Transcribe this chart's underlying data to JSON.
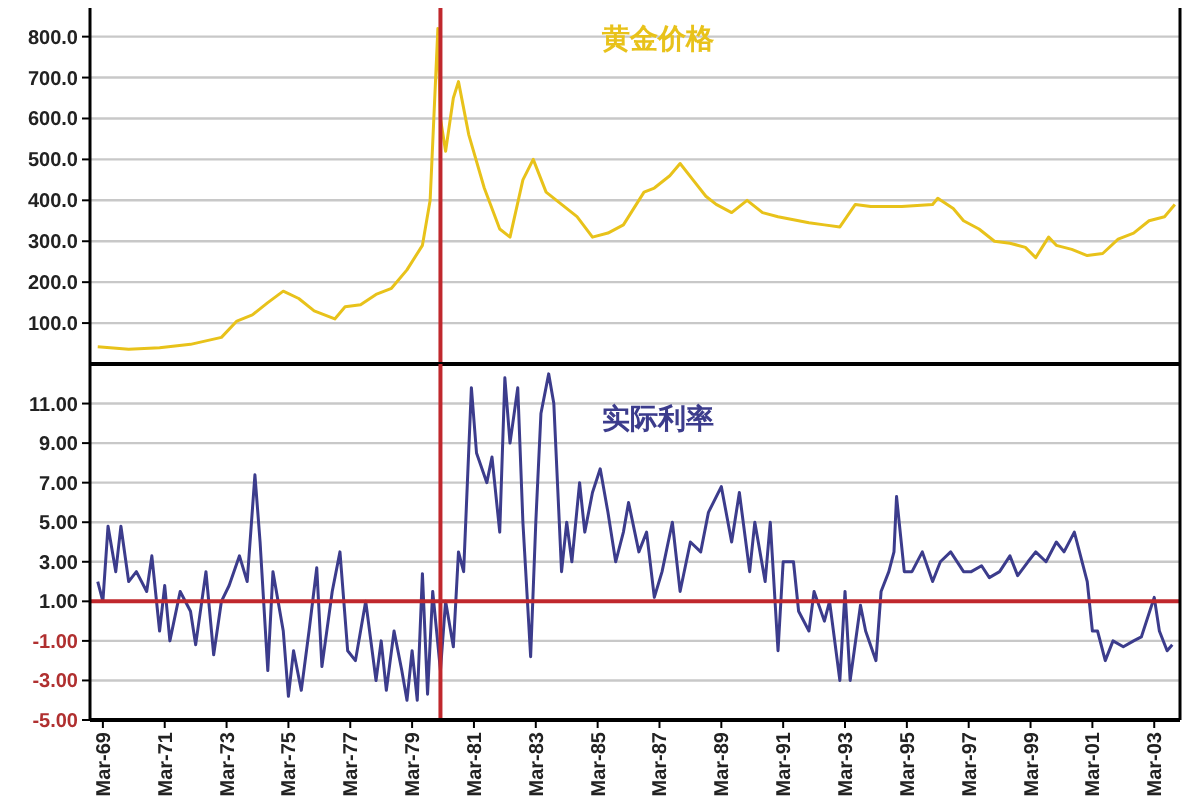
{
  "chart_data": [
    {
      "type": "line",
      "tick_labels": "y",
      "grid": "y",
      "xlim": [
        "1968-10",
        "2004-01"
      ],
      "ylim": [
        0,
        870
      ],
      "yticks": [
        {
          "value": 100,
          "label": "100.0"
        },
        {
          "value": 200,
          "label": "200.0"
        },
        {
          "value": 300,
          "label": "300.0"
        },
        {
          "value": 400,
          "label": "400.0"
        },
        {
          "value": 500,
          "label": "500.0"
        },
        {
          "value": 600,
          "label": "600.0"
        },
        {
          "value": 700,
          "label": "700.0"
        },
        {
          "value": 800,
          "label": "800.0"
        }
      ],
      "ref_lines": [
        {
          "axis": "x",
          "value": "1980-02",
          "color": "#c0282d"
        }
      ],
      "series": [
        {
          "name": "黄金价格",
          "color": "#e8c21a",
          "x": [
            "1969-01",
            "1970-01",
            "1971-01",
            "1972-01",
            "1973-01",
            "1973-07",
            "1974-01",
            "1974-07",
            "1975-01",
            "1975-07",
            "1976-01",
            "1976-09",
            "1977-01",
            "1977-07",
            "1978-01",
            "1978-07",
            "1979-01",
            "1979-07",
            "1979-10",
            "1980-01",
            "1980-02",
            "1980-04",
            "1980-07",
            "1980-09",
            "1981-01",
            "1981-07",
            "1982-01",
            "1982-05",
            "1982-10",
            "1983-02",
            "1983-07",
            "1984-01",
            "1984-07",
            "1985-01",
            "1985-07",
            "1986-01",
            "1986-09",
            "1987-01",
            "1987-07",
            "1987-11",
            "1988-04",
            "1988-09",
            "1989-01",
            "1989-07",
            "1990-01",
            "1990-07",
            "1991-01",
            "1992-01",
            "1992-07",
            "1993-01",
            "1993-07",
            "1994-01",
            "1995-01",
            "1996-01",
            "1996-03",
            "1996-09",
            "1997-01",
            "1997-07",
            "1998-01",
            "1998-07",
            "1999-01",
            "1999-05",
            "1999-10",
            "2000-01",
            "2000-07",
            "2001-01",
            "2001-07",
            "2002-01",
            "2002-07",
            "2003-01",
            "2003-07",
            "2003-11"
          ],
          "values": [
            42,
            36,
            40,
            48,
            65,
            105,
            120,
            150,
            178,
            160,
            130,
            110,
            140,
            145,
            170,
            185,
            230,
            290,
            400,
            820,
            600,
            520,
            650,
            690,
            560,
            430,
            330,
            310,
            450,
            500,
            420,
            390,
            360,
            310,
            320,
            340,
            420,
            430,
            460,
            490,
            450,
            410,
            390,
            370,
            400,
            370,
            360,
            345,
            340,
            335,
            390,
            385,
            385,
            390,
            405,
            380,
            350,
            330,
            300,
            295,
            285,
            260,
            310,
            290,
            280,
            265,
            270,
            305,
            320,
            350,
            360,
            390
          ]
        }
      ]
    },
    {
      "type": "line",
      "grid": "y",
      "xlim": [
        "1968-10",
        "2004-01"
      ],
      "ylim": [
        -5,
        13
      ],
      "xticks": [
        {
          "value": "1969-03",
          "label": "Mar-69"
        },
        {
          "value": "1971-03",
          "label": "Mar-71"
        },
        {
          "value": "1973-03",
          "label": "Mar-73"
        },
        {
          "value": "1975-03",
          "label": "Mar-75"
        },
        {
          "value": "1977-03",
          "label": "Mar-77"
        },
        {
          "value": "1979-03",
          "label": "Mar-79"
        },
        {
          "value": "1981-03",
          "label": "Mar-81"
        },
        {
          "value": "1983-03",
          "label": "Mar-83"
        },
        {
          "value": "1985-03",
          "label": "Mar-85"
        },
        {
          "value": "1987-03",
          "label": "Mar-87"
        },
        {
          "value": "1989-03",
          "label": "Mar-89"
        },
        {
          "value": "1991-03",
          "label": "Mar-91"
        },
        {
          "value": "1993-03",
          "label": "Mar-93"
        },
        {
          "value": "1995-03",
          "label": "Mar-95"
        },
        {
          "value": "1997-03",
          "label": "Mar-97"
        },
        {
          "value": "1999-03",
          "label": "Mar-99"
        },
        {
          "value": "2001-03",
          "label": "Mar-01"
        },
        {
          "value": "2003-03",
          "label": "Mar-03"
        }
      ],
      "yticks": [
        {
          "value": -5,
          "label": "-5.00"
        },
        {
          "value": -3,
          "label": "-3.00"
        },
        {
          "value": -1,
          "label": "-1.00"
        },
        {
          "value": 1,
          "label": "1.00"
        },
        {
          "value": 3,
          "label": "3.00"
        },
        {
          "value": 5,
          "label": "5.00"
        },
        {
          "value": 7,
          "label": "7.00"
        },
        {
          "value": 9,
          "label": "9.00"
        },
        {
          "value": 11,
          "label": "11.00"
        }
      ],
      "ref_lines": [
        {
          "axis": "x",
          "value": "1980-02",
          "color": "#c0282d"
        },
        {
          "axis": "y",
          "value": 1,
          "color": "#c0282d"
        }
      ],
      "series": [
        {
          "name": "实际利率",
          "color": "#3c3c8c",
          "x": [
            "1969-01",
            "1969-03",
            "1969-05",
            "1969-08",
            "1969-10",
            "1970-01",
            "1970-04",
            "1970-08",
            "1970-10",
            "1971-01",
            "1971-03",
            "1971-05",
            "1971-09",
            "1972-01",
            "1972-03",
            "1972-07",
            "1972-10",
            "1973-01",
            "1973-04",
            "1973-08",
            "1973-11",
            "1974-02",
            "1974-04",
            "1974-07",
            "1974-09",
            "1975-01",
            "1975-03",
            "1975-05",
            "1975-08",
            "1975-11",
            "1976-02",
            "1976-04",
            "1976-08",
            "1976-11",
            "1977-02",
            "1977-05",
            "1977-09",
            "1978-01",
            "1978-03",
            "1978-05",
            "1978-08",
            "1978-11",
            "1979-01",
            "1979-03",
            "1979-05",
            "1979-07",
            "1979-09",
            "1979-11",
            "1980-02",
            "1980-04",
            "1980-07",
            "1980-09",
            "1980-11",
            "1981-02",
            "1981-04",
            "1981-08",
            "1981-10",
            "1982-01",
            "1982-03",
            "1982-05",
            "1982-08",
            "1982-10",
            "1983-01",
            "1983-03",
            "1983-05",
            "1983-08",
            "1983-10",
            "1984-01",
            "1984-03",
            "1984-05",
            "1984-08",
            "1984-10",
            "1985-01",
            "1985-04",
            "1985-07",
            "1985-10",
            "1986-01",
            "1986-03",
            "1986-07",
            "1986-10",
            "1987-01",
            "1987-04",
            "1987-08",
            "1987-11",
            "1988-03",
            "1988-07",
            "1988-10",
            "1989-03",
            "1989-07",
            "1989-10",
            "1990-02",
            "1990-04",
            "1990-08",
            "1990-10",
            "1991-01",
            "1991-03",
            "1991-07",
            "1991-09",
            "1992-01",
            "1992-03",
            "1992-07",
            "1992-09",
            "1993-01",
            "1993-03",
            "1993-05",
            "1993-09",
            "1993-11",
            "1994-03",
            "1994-05",
            "1994-08",
            "1994-10",
            "1994-11",
            "1995-02",
            "1995-05",
            "1995-09",
            "1996-01",
            "1996-04",
            "1996-08",
            "1997-01",
            "1997-04",
            "1997-08",
            "1997-11",
            "1998-03",
            "1998-07",
            "1998-10",
            "1999-02",
            "1999-05",
            "1999-09",
            "2000-01",
            "2000-04",
            "2000-08",
            "2000-10",
            "2001-01",
            "2001-03",
            "2001-05",
            "2001-08",
            "2001-11",
            "2002-03",
            "2002-07",
            "2002-10",
            "2003-03",
            "2003-05",
            "2003-08",
            "2003-10"
          ],
          "values": [
            2,
            1,
            4.8,
            2.5,
            4.8,
            2,
            2.5,
            1.5,
            3.3,
            -0.5,
            1.8,
            -1,
            1.5,
            0.5,
            -1.2,
            2.5,
            -1.7,
            1,
            1.8,
            3.3,
            2,
            7.4,
            4,
            -2.5,
            2.5,
            -0.5,
            -3.8,
            -1.5,
            -3.5,
            -0.5,
            2.7,
            -2.3,
            1.5,
            3.5,
            -1.5,
            -2,
            1,
            -3,
            -1,
            -3.5,
            -0.5,
            -2.5,
            -4,
            -1.5,
            -4,
            2.4,
            -3.7,
            1.5,
            -2.5,
            1,
            -1.3,
            3.5,
            2.5,
            11.8,
            8.5,
            7,
            8.3,
            4.5,
            12.3,
            9,
            11.8,
            5,
            -1.8,
            5,
            10.5,
            12.5,
            11,
            2.5,
            5,
            3,
            7,
            4.5,
            6.5,
            7.7,
            5.5,
            3,
            4.5,
            6,
            3.5,
            4.5,
            1.2,
            2.5,
            5,
            1.5,
            4,
            3.5,
            5.5,
            6.8,
            4,
            6.5,
            2.5,
            5,
            2,
            5,
            -1.5,
            3,
            3,
            0.5,
            -0.5,
            1.5,
            0,
            1,
            -3,
            1.5,
            -3,
            0.8,
            -0.5,
            -2,
            1.5,
            2.5,
            3.5,
            6.3,
            2.5,
            2.5,
            3.5,
            2,
            3,
            3.5,
            2.5,
            2.5,
            2.8,
            2.2,
            2.5,
            3.3,
            2.3,
            3,
            3.5,
            3,
            4,
            3.5,
            4.5,
            3.5,
            2,
            -0.5,
            -0.5,
            -2,
            -1,
            -1.3,
            -1,
            -0.8,
            1.2,
            -0.5,
            -1.5,
            -1.2
          ]
        }
      ]
    }
  ]
}
